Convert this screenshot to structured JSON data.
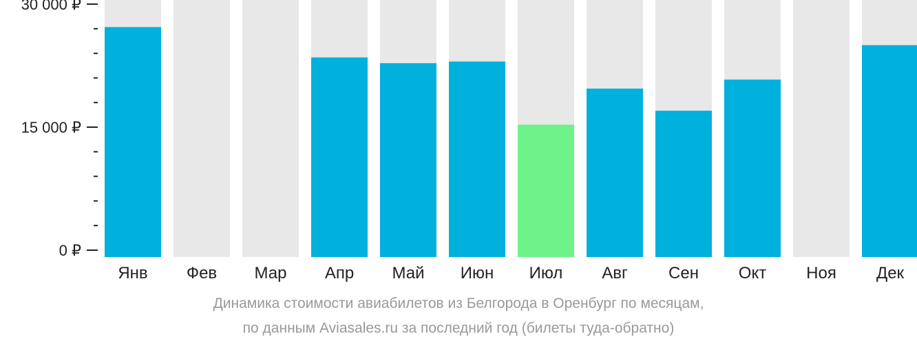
{
  "chart_data": {
    "type": "bar",
    "categories": [
      "Янв",
      "Фев",
      "Мар",
      "Апр",
      "Май",
      "Июн",
      "Июл",
      "Авг",
      "Сен",
      "Окт",
      "Ноя",
      "Дек"
    ],
    "values": [
      27200,
      null,
      null,
      23500,
      22800,
      23000,
      15300,
      19700,
      17000,
      20800,
      null,
      25000
    ],
    "ylim": [
      0,
      30000
    ],
    "yticks": [
      {
        "value": 0,
        "label": "0 ₽"
      },
      {
        "value": 15000,
        "label": "15 000 ₽"
      },
      {
        "value": 30000,
        "label": "30 000 ₽"
      }
    ],
    "minor_tick_step": 3000,
    "highlight_index": 6,
    "colors": {
      "bar": "#00b0dd",
      "highlight": "#6ef28a",
      "background_column": "#e8e8e8",
      "axis": "#222222"
    }
  },
  "caption": {
    "line1": "Динамика стоимости авиабилетов из Белгорода в Оренбург по месяцам,",
    "line2": "по данным Aviasales.ru за последний год (билеты туда-обратно)"
  }
}
